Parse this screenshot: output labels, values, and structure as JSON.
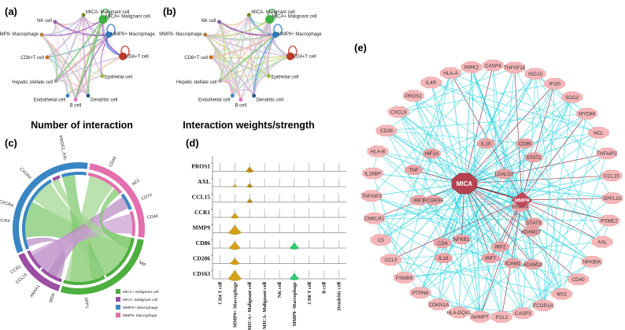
{
  "panels": {
    "a": {
      "label": "(a)",
      "caption": "Number of interaction",
      "nodes": [
        "MICA- Malignant cell",
        "MICA+ Malignant cell",
        "NK cell",
        "MMP9- Macrophage",
        "MMP9+ Macrophage",
        "CD4+T cell",
        "CD8+T cell",
        "Epithelial cell",
        "Hepatic stellate cell",
        "Endothelial cell",
        "Dendritic cell",
        "B cell"
      ]
    },
    "b": {
      "label": "(b)",
      "caption": "Interaction weights/strength",
      "nodes": [
        "MICA- Malignant cell",
        "MICA+ Malignant cell",
        "NK cell",
        "MMP9- Macrophage",
        "MMP9+ Macrophage",
        "CD4+T cell",
        "CD8+T cell",
        "Epithelial cell",
        "Hepatic stellate cell",
        "Endothelial cell",
        "Dendritic cell",
        "B cell"
      ]
    },
    "c": {
      "label": "(c)",
      "chord_labels": [
        "PROS1_AXL",
        "CD274_CXCR4",
        "CD74_CXCR4",
        "CD44",
        "SPP1",
        "MIF",
        "ANXA1",
        "CCL15",
        "CCR1",
        "MDK",
        "NCL",
        "CXCR4",
        "CD74",
        "CD44"
      ],
      "legend": [
        {
          "label": "MICA+ Malignant cell",
          "color": "#4caf3e"
        },
        {
          "label": "MICA- Malignant cell",
          "color": "#9c4fa3"
        },
        {
          "label": "MMP9+ Macrophage",
          "color": "#3a86c4"
        },
        {
          "label": "MMP9- Macrophage",
          "color": "#e46fae"
        }
      ]
    },
    "d": {
      "label": "(d)",
      "genes": [
        "PROS1",
        "AXL",
        "CCL15",
        "CCR1",
        "MMP9",
        "CD86",
        "CD206",
        "CD163"
      ],
      "cell_types": [
        "CD4 T cell",
        "MMP9+ Macrophage",
        "MICA+ Malignant cell",
        "MICA- Malignant cell",
        "NK cell",
        "MMP9- Macrophage",
        "CD8 T cell",
        "B cell",
        "Dendritic cell"
      ]
    },
    "e": {
      "label": "(e)",
      "hub_nodes": [
        "MICA",
        "MMP9"
      ],
      "inner_nodes": [
        "CD86",
        "IL10",
        "HIF1A",
        "STAT1",
        "LGALS3",
        "TNF",
        "IRF1",
        "FCGR3A",
        "HSPA4",
        "STAT3",
        "ADAM17",
        "CD4",
        "NFKB1",
        "IRF2",
        "IL18",
        "IRF7",
        "ICAM1",
        "ADAM10"
      ],
      "outer_nodes": [
        "HLA-A",
        "RIPK2",
        "CASP4",
        "TNFSF10",
        "ISG15",
        "IFI30",
        "SOD2",
        "MYD88",
        "NCL",
        "TNFAIP2",
        "CCL15",
        "SPPL2A",
        "PSME2",
        "AXL",
        "NFKBIA",
        "CD40",
        "MX2",
        "FCGR1A",
        "CASP3",
        "FGL2",
        "NAMPT",
        "HLA-DQA1",
        "CDKN1A",
        "PTPN6",
        "PSMB9",
        "CCL5",
        "C5",
        "CMKLR1",
        "TNFAIP3",
        "IL18BP",
        "HLA-B",
        "CD38",
        "CXCL9",
        "PROS1",
        "IL4R"
      ]
    }
  }
}
